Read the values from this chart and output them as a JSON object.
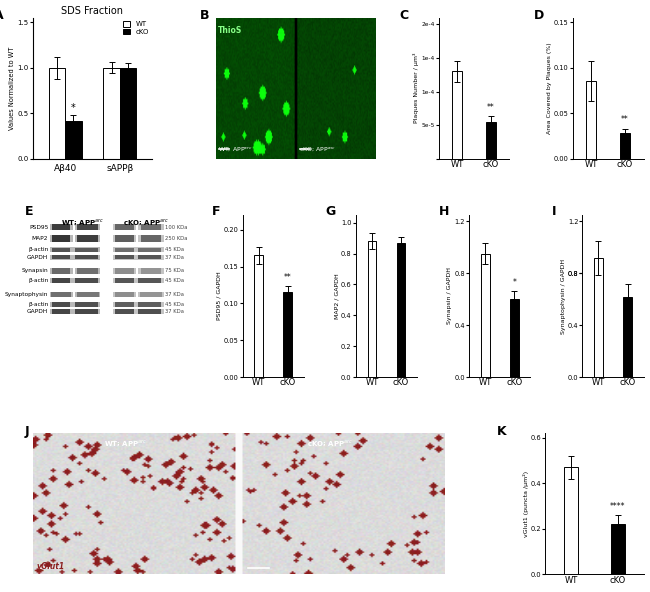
{
  "panel_A": {
    "title": "SDS Fraction",
    "ylabel": "Values Normalized to WT",
    "categories": [
      "Aβ40",
      "sAPPβ"
    ],
    "WT_values": [
      1.0,
      1.0
    ],
    "cKO_values": [
      0.42,
      1.0
    ],
    "WT_errors": [
      0.12,
      0.06
    ],
    "cKO_errors": [
      0.06,
      0.05
    ],
    "ylim": [
      0,
      1.55
    ],
    "yticks": [
      0.0,
      0.5,
      1.0,
      1.5
    ],
    "sig_AB40": "*"
  },
  "panel_C": {
    "ylabel": "Plaques Number / μm³",
    "WT_value": 0.00013,
    "cKO_value": 5.5e-05,
    "WT_error": 1.5e-05,
    "cKO_error": 8e-06,
    "ylim": [
      0,
      0.00021
    ],
    "yticks": [
      0.0,
      5e-05,
      0.0001,
      0.00015,
      0.0002
    ],
    "sig": "**"
  },
  "panel_D": {
    "ylabel": "Area Covered by Plaques (%)",
    "WT_value": 0.085,
    "cKO_value": 0.028,
    "WT_error": 0.022,
    "cKO_error": 0.005,
    "ylim": [
      0,
      0.155
    ],
    "yticks": [
      0.0,
      0.05,
      0.1,
      0.15
    ],
    "sig": "**"
  },
  "panel_F": {
    "ylabel": "PSD95 / GAPDH",
    "WT_value": 0.165,
    "cKO_value": 0.115,
    "WT_error": 0.012,
    "cKO_error": 0.008,
    "ylim": [
      0,
      0.22
    ],
    "yticks": [
      0.0,
      0.05,
      0.1,
      0.15,
      0.2
    ],
    "sig": "**"
  },
  "panel_G": {
    "ylabel": "MAP2 / GAPDH",
    "WT_value": 0.88,
    "cKO_value": 0.87,
    "WT_error": 0.05,
    "cKO_error": 0.04,
    "ylim": [
      0,
      1.05
    ],
    "yticks": [
      0.0,
      0.2,
      0.4,
      0.6,
      0.8,
      1.0
    ],
    "sig": ""
  },
  "panel_H": {
    "ylabel": "Synapsin / GAPDH",
    "WT_value": 0.95,
    "cKO_value": 0.6,
    "WT_error": 0.08,
    "cKO_error": 0.06,
    "ylim": [
      0,
      1.25
    ],
    "yticks": [
      0.0,
      0.4,
      0.8,
      1.2
    ],
    "sig": "*"
  },
  "panel_I": {
    "ylabel": "Synaptophysin / GAPDH",
    "WT_value": 0.92,
    "cKO_value": 0.62,
    "WT_error": 0.13,
    "cKO_error": 0.1,
    "ylim": [
      0,
      1.25
    ],
    "yticks": [
      0.0,
      0.4,
      0.8,
      0.8,
      1.2
    ],
    "sig": ""
  },
  "panel_K": {
    "ylabel": "vGlut1 (puncta /μm²)",
    "WT_value": 0.47,
    "cKO_value": 0.22,
    "WT_error": 0.05,
    "cKO_error": 0.04,
    "ylim": [
      0,
      0.62
    ],
    "yticks": [
      0.0,
      0.2,
      0.4,
      0.6
    ],
    "sig": "****"
  },
  "colors": {
    "WT": "#ffffff",
    "cKO": "#000000",
    "bar_edge": "#000000",
    "bg": "#ffffff"
  },
  "microscopy_green_dark": "#1a5c1a",
  "microscopy_green_mid": "#226622",
  "microscopy_bright": "#88ff88",
  "vglut_bg": "#d0c8c0",
  "vglut_dot": "#8b2020"
}
